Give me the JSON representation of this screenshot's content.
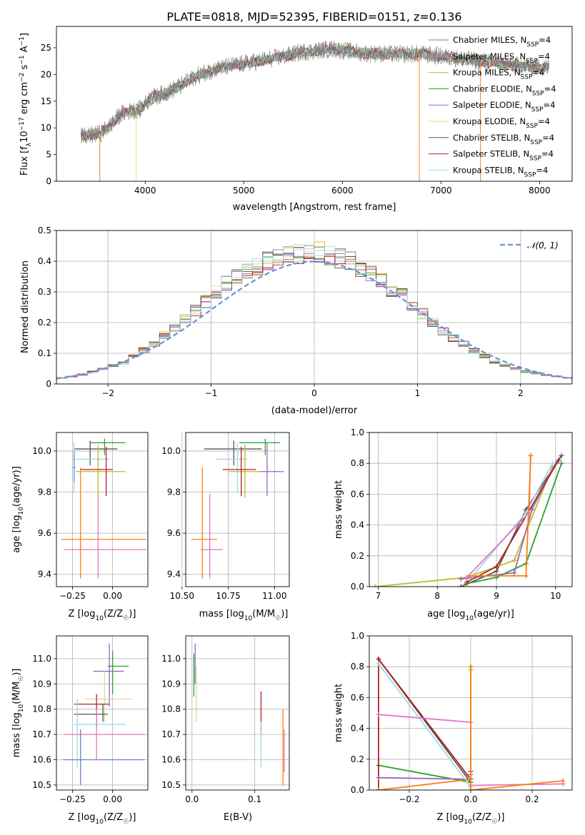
{
  "figure_title": "PLATE=0818, MJD=52395, FIBERID=0151, z=0.136",
  "palette": [
    "#808080",
    "#e377c2",
    "#bcbd22",
    "#2ca02c",
    "#9467bd",
    "#dbdb8d",
    "#555555",
    "#b22222",
    "#9edae5",
    "#ff7f0e",
    "#6a8fd8"
  ],
  "chart_data": [
    {
      "id": "spectrum",
      "type": "line",
      "title": "PLATE=0818, MJD=52395, FIBERID=0151, z=0.136",
      "xlabel": "wavelength [Angstrom, rest frame]",
      "ylabel": "Flux [f_λ 10⁻¹⁷ erg cm⁻² s⁻¹ A⁻¹]",
      "xlim": [
        3100,
        8330
      ],
      "ylim": [
        0,
        29
      ],
      "xticks": [
        4000,
        5000,
        6000,
        7000,
        8000
      ],
      "yticks": [
        0,
        5,
        10,
        15,
        20,
        25
      ],
      "grid": false,
      "legend_position": "top-right",
      "legend": [
        {
          "base": "Chabrier MILES, N",
          "sub": "SSP",
          "tail": "=4",
          "color": "#808080"
        },
        {
          "base": "Salpeter MILES, N",
          "sub": "SSP",
          "tail": "=4",
          "color": "#e377c2"
        },
        {
          "base": "Kroupa MILES, N",
          "sub": "SSP",
          "tail": "=4",
          "color": "#bcbd22"
        },
        {
          "base": "Chabrier ELODIE, N",
          "sub": "SSP",
          "tail": "=4",
          "color": "#2ca02c"
        },
        {
          "base": "Salpeter ELODIE, N",
          "sub": "SSP",
          "tail": "=4",
          "color": "#9467bd"
        },
        {
          "base": "Kroupa ELODIE, N",
          "sub": "SSP",
          "tail": "=4",
          "color": "#dbdb8d"
        },
        {
          "base": "Chabrier STELIB, N",
          "sub": "SSP",
          "tail": "=4",
          "color": "#555555"
        },
        {
          "base": "Salpeter STELIB, N",
          "sub": "SSP",
          "tail": "=4",
          "color": "#b22222"
        },
        {
          "base": "Kroupa STELIB, N",
          "sub": "SSP",
          "tail": "=4",
          "color": "#9edae5"
        }
      ],
      "continuum": [
        [
          3350,
          8.3
        ],
        [
          3450,
          8.6
        ],
        [
          3550,
          9.0
        ],
        [
          3650,
          10.5
        ],
        [
          3750,
          12.5
        ],
        [
          3850,
          13.2
        ],
        [
          3950,
          13.5
        ],
        [
          4050,
          15.5
        ],
        [
          4200,
          16.5
        ],
        [
          4350,
          17.8
        ],
        [
          4500,
          19.5
        ],
        [
          4700,
          21.0
        ],
        [
          5000,
          22.0
        ],
        [
          5300,
          23.0
        ],
        [
          5600,
          24.2
        ],
        [
          5900,
          24.8
        ],
        [
          6200,
          24.0
        ],
        [
          6500,
          23.8
        ],
        [
          6800,
          23.8
        ],
        [
          7100,
          23.2
        ],
        [
          7400,
          22.5
        ],
        [
          7600,
          22.0
        ],
        [
          7800,
          21.6
        ],
        [
          8000,
          21.4
        ],
        [
          8100,
          21.3
        ]
      ]
    },
    {
      "id": "residuals",
      "type": "step",
      "xlabel": "(data-model)/error",
      "ylabel": "Normed distribution",
      "xlim": [
        -2.5,
        2.5
      ],
      "ylim": [
        0,
        0.5
      ],
      "xticks": [
        -2,
        -1,
        0,
        1,
        2
      ],
      "xtick_labels": [
        "−2",
        "−1",
        "0",
        "1",
        "2"
      ],
      "yticks": [
        0.0,
        0.1,
        0.2,
        0.3,
        0.4,
        0.5
      ],
      "grid": true,
      "legend_position": "top-right",
      "legend": [
        {
          "label": "𝒩(0, 1)",
          "style": "dashed",
          "color": "#6a8fd8"
        }
      ],
      "bin_width": 0.1,
      "hist_mean": [
        0.02,
        0.025,
        0.03,
        0.04,
        0.05,
        0.06,
        0.07,
        0.09,
        0.11,
        0.13,
        0.16,
        0.18,
        0.21,
        0.24,
        0.27,
        0.3,
        0.33,
        0.35,
        0.37,
        0.38,
        0.4,
        0.41,
        0.42,
        0.42,
        0.43,
        0.43,
        0.42,
        0.41,
        0.4,
        0.38,
        0.36,
        0.34,
        0.31,
        0.29,
        0.26,
        0.23,
        0.2,
        0.17,
        0.15,
        0.13,
        0.11,
        0.09,
        0.07,
        0.06,
        0.05,
        0.04,
        0.035,
        0.03,
        0.025,
        0.02
      ]
    },
    {
      "id": "age-vs-Z",
      "type": "errorbar",
      "xlabel": "Z [log₁₀(Z/Z☉)]",
      "ylabel": "age  [log₁₀(age/yr)]",
      "xlim": [
        -0.35,
        0.22
      ],
      "ylim": [
        9.34,
        10.09
      ],
      "xticks": [
        -0.25,
        0.0
      ],
      "xtick_labels": [
        "−0.25",
        "0.00"
      ],
      "yticks": [
        9.4,
        9.6,
        9.8,
        10.0
      ],
      "yticks_labels": [
        "9.4",
        "9.6",
        "9.8",
        "10.0"
      ],
      "grid": true,
      "points": [
        {
          "x": -0.14,
          "y": 10.01,
          "xl": -0.24,
          "xh": 0.03,
          "yl": 9.93,
          "yh": 10.05,
          "color": "#555555"
        },
        {
          "x": -0.05,
          "y": 10.04,
          "xl": -0.14,
          "xh": 0.08,
          "yl": 9.98,
          "yh": 10.06,
          "color": "#2ca02c"
        },
        {
          "x": -0.24,
          "y": 9.96,
          "xl": -0.25,
          "xh": -0.02,
          "yl": 9.8,
          "yh": 10.04,
          "color": "#9edae5"
        },
        {
          "x": -0.09,
          "y": 9.9,
          "xl": -0.23,
          "xh": 0.08,
          "yl": 9.77,
          "yh": 10.03,
          "color": "#bcbd22"
        },
        {
          "x": -0.04,
          "y": 9.91,
          "xl": -0.2,
          "xh": 0.0,
          "yl": 9.78,
          "yh": 10.02,
          "color": "#b22222"
        },
        {
          "x": -0.24,
          "y": 9.92,
          "xl": -0.25,
          "xh": -0.23,
          "yl": 9.85,
          "yh": 10.0,
          "color": "#6a8fd8"
        },
        {
          "x": -0.2,
          "y": 9.57,
          "xl": -0.32,
          "xh": 0.21,
          "yl": 9.38,
          "yh": 9.92,
          "color": "#ff7f0e"
        },
        {
          "x": -0.09,
          "y": 9.52,
          "xl": -0.3,
          "xh": 0.21,
          "yl": 9.38,
          "yh": 9.79,
          "color": "#e377c2"
        }
      ]
    },
    {
      "id": "age-vs-mass",
      "type": "errorbar",
      "xlabel": "mass [log₁₀(M/M☉)]",
      "ylabel": "",
      "xlim": [
        10.52,
        11.08
      ],
      "ylim": [
        9.34,
        10.09
      ],
      "xticks": [
        10.5,
        10.75,
        11.0
      ],
      "xtick_labels": [
        "10.50",
        "10.75",
        "11.00"
      ],
      "yticks": [
        9.4,
        9.6,
        9.8,
        10.0
      ],
      "yticks_labels": [
        "9.4",
        "9.6",
        "9.8",
        "10.0"
      ],
      "grid": true,
      "points": [
        {
          "x": 10.78,
          "y": 10.01,
          "xl": 10.62,
          "xh": 10.93,
          "yl": 9.93,
          "yh": 10.05,
          "color": "#555555"
        },
        {
          "x": 10.95,
          "y": 10.04,
          "xl": 10.81,
          "xh": 11.03,
          "yl": 9.98,
          "yh": 10.06,
          "color": "#2ca02c"
        },
        {
          "x": 10.8,
          "y": 9.96,
          "xl": 10.68,
          "xh": 10.85,
          "yl": 9.8,
          "yh": 10.04,
          "color": "#9edae5"
        },
        {
          "x": 10.84,
          "y": 9.9,
          "xl": 10.75,
          "xh": 10.93,
          "yl": 9.77,
          "yh": 10.03,
          "color": "#bcbd22"
        },
        {
          "x": 10.82,
          "y": 9.91,
          "xl": 10.72,
          "xh": 10.9,
          "yl": 9.78,
          "yh": 10.02,
          "color": "#b22222"
        },
        {
          "x": 10.96,
          "y": 9.9,
          "xl": 10.92,
          "xh": 11.05,
          "yl": 9.78,
          "yh": 10.04,
          "color": "#9467bd"
        },
        {
          "x": 10.61,
          "y": 9.57,
          "xl": 10.55,
          "xh": 10.69,
          "yl": 9.38,
          "yh": 9.92,
          "color": "#ff7f0e"
        },
        {
          "x": 10.65,
          "y": 9.52,
          "xl": 10.6,
          "xh": 10.72,
          "yl": 9.38,
          "yh": 9.79,
          "color": "#e377c2"
        }
      ]
    },
    {
      "id": "mass-weight-vs-age",
      "type": "line",
      "xlabel": "age  [log₁₀(age/yr)]",
      "ylabel": "mass weight",
      "xlim": [
        6.85,
        10.28
      ],
      "ylim": [
        0,
        1.0
      ],
      "xticks": [
        7,
        8,
        9,
        10
      ],
      "yticks": [
        0.0,
        0.2,
        0.4,
        0.6,
        0.8,
        1.0
      ],
      "yticks_labels": [
        "0.0",
        "0.2",
        "0.4",
        "0.6",
        "0.8",
        "1.0"
      ],
      "grid": true,
      "series": [
        {
          "color": "#555555",
          "points": [
            [
              8.4,
              0.0
            ],
            [
              9.0,
              0.1
            ],
            [
              9.5,
              0.5
            ],
            [
              10.1,
              0.85
            ]
          ]
        },
        {
          "color": "#2ca02c",
          "points": [
            [
              8.5,
              0.02
            ],
            [
              9.0,
              0.06
            ],
            [
              9.5,
              0.15
            ],
            [
              10.1,
              0.8
            ]
          ]
        },
        {
          "color": "#bcbd22",
          "points": [
            [
              6.95,
              0.0
            ],
            [
              8.5,
              0.06
            ],
            [
              9.3,
              0.17
            ],
            [
              9.95,
              0.78
            ]
          ]
        },
        {
          "color": "#9467bd",
          "points": [
            [
              8.4,
              0.05
            ],
            [
              9.3,
              0.09
            ],
            [
              9.6,
              0.5
            ],
            [
              10.0,
              0.8
            ]
          ]
        },
        {
          "color": "#b22222",
          "points": [
            [
              8.5,
              0.03
            ],
            [
              9.0,
              0.13
            ],
            [
              10.05,
              0.82
            ]
          ]
        },
        {
          "color": "#9edae5",
          "points": [
            [
              8.6,
              0.07
            ],
            [
              9.5,
              0.48
            ],
            [
              9.95,
              0.8
            ]
          ]
        },
        {
          "color": "#e377c2",
          "points": [
            [
              8.5,
              0.06
            ],
            [
              9.55,
              0.48
            ],
            [
              9.58,
              0.85
            ]
          ]
        },
        {
          "color": "#ff7f0e",
          "points": [
            [
              8.55,
              0.07
            ],
            [
              9.5,
              0.07
            ],
            [
              9.58,
              0.85
            ]
          ]
        }
      ]
    },
    {
      "id": "mass-vs-Z",
      "type": "errorbar",
      "xlabel": "Z [log₁₀(Z/Z☉)]",
      "ylabel": "mass [log₁₀(M/M☉)]",
      "xlim": [
        -0.35,
        0.22
      ],
      "ylim": [
        10.48,
        11.09
      ],
      "xticks": [
        -0.25,
        0.0
      ],
      "xtick_labels": [
        "−0.25",
        "0.00"
      ],
      "yticks": [
        10.5,
        10.6,
        10.7,
        10.8,
        10.9,
        11.0
      ],
      "yticks_labels": [
        "10.5",
        "10.6",
        "10.7",
        "10.8",
        "10.9",
        "11.0"
      ],
      "grid": true,
      "points": [
        {
          "x": 0.0,
          "y": 10.97,
          "xl": -0.03,
          "xh": 0.1,
          "yl": 10.86,
          "yh": 11.03,
          "color": "#2ca02c"
        },
        {
          "x": -0.02,
          "y": 10.95,
          "xl": -0.12,
          "xh": 0.07,
          "yl": 10.81,
          "yh": 11.06,
          "color": "#9467bd"
        },
        {
          "x": -0.05,
          "y": 10.84,
          "xl": -0.17,
          "xh": 0.12,
          "yl": 10.75,
          "yh": 10.95,
          "color": "#dbdb8d"
        },
        {
          "x": -0.1,
          "y": 10.82,
          "xl": -0.24,
          "xh": -0.02,
          "yl": 10.73,
          "yh": 10.86,
          "color": "#b22222"
        },
        {
          "x": -0.06,
          "y": 10.78,
          "xl": -0.24,
          "xh": -0.03,
          "yl": 10.75,
          "yh": 10.82,
          "color": "#555555"
        },
        {
          "x": -0.22,
          "y": 10.74,
          "xl": -0.24,
          "xh": 0.08,
          "yl": 10.57,
          "yh": 10.84,
          "color": "#9edae5"
        },
        {
          "x": -0.1,
          "y": 10.7,
          "xl": -0.3,
          "xh": 0.2,
          "yl": 10.6,
          "yh": 10.8,
          "color": "#e377c2"
        },
        {
          "x": -0.2,
          "y": 10.6,
          "xl": -0.31,
          "xh": 0.2,
          "yl": 10.5,
          "yh": 10.72,
          "color": "#ff7f0e"
        },
        {
          "x": -0.2,
          "y": 10.6,
          "xl": -0.31,
          "xh": 0.2,
          "yl": 10.5,
          "yh": 10.72,
          "color": "#6a8fd8"
        }
      ]
    },
    {
      "id": "mass-vs-EBV",
      "type": "errorbar",
      "xlabel": "E(B-V)",
      "ylabel": "",
      "xlim": [
        -0.01,
        0.155
      ],
      "ylim": [
        10.48,
        11.09
      ],
      "xticks": [
        0.0,
        0.1
      ],
      "xtick_labels": [
        "0.0",
        "0.1"
      ],
      "yticks": [
        10.5,
        10.6,
        10.7,
        10.8,
        10.9,
        11.0
      ],
      "yticks_labels": [
        "10.5",
        "10.6",
        "10.7",
        "10.8",
        "10.9",
        "11.0"
      ],
      "grid": true,
      "points": [
        {
          "x": 0.005,
          "y": 11.0,
          "yl": 10.9,
          "yh": 11.06,
          "color": "#9467bd"
        },
        {
          "x": 0.007,
          "y": 10.9,
          "yl": 10.75,
          "yh": 10.97,
          "color": "#dbdb8d"
        },
        {
          "x": 0.003,
          "y": 10.95,
          "yl": 10.85,
          "yh": 11.02,
          "color": "#2ca02c"
        },
        {
          "x": 0.11,
          "y": 10.8,
          "yl": 10.7,
          "yh": 10.87,
          "color": "#b22222"
        },
        {
          "x": 0.11,
          "y": 10.68,
          "yl": 10.57,
          "yh": 10.75,
          "color": "#9edae5"
        },
        {
          "x": 0.145,
          "y": 10.65,
          "yl": 10.5,
          "yh": 10.8,
          "color": "#ff7f0e"
        },
        {
          "x": 0.147,
          "y": 10.62,
          "yl": 10.55,
          "yh": 10.72,
          "color": "#e377c2"
        }
      ]
    },
    {
      "id": "mass-weight-vs-Z",
      "type": "line",
      "xlabel": "Z [log₁₀(Z/Z☉)]",
      "ylabel": "mass weight",
      "xlim": [
        -0.33,
        0.33
      ],
      "ylim": [
        0,
        1.0
      ],
      "xticks": [
        -0.2,
        0.0,
        0.2
      ],
      "xtick_labels": [
        "−0.2",
        "0.0",
        "0.2"
      ],
      "yticks": [
        0.0,
        0.2,
        0.4,
        0.6,
        0.8,
        1.0
      ],
      "yticks_labels": [
        "0.0",
        "0.2",
        "0.4",
        "0.6",
        "0.8",
        "1.0"
      ],
      "grid": true,
      "series": [
        {
          "color": "#555555",
          "points": [
            [
              -0.3,
              0.85
            ],
            [
              0.0,
              0.05
            ],
            [
              0.0,
              0.12
            ]
          ]
        },
        {
          "color": "#2ca02c",
          "points": [
            [
              -0.3,
              0.16
            ],
            [
              0.0,
              0.05
            ],
            [
              0.0,
              0.8
            ]
          ]
        },
        {
          "color": "#bcbd22",
          "points": [
            [
              0.0,
              0.0
            ],
            [
              0.0,
              0.78
            ]
          ]
        },
        {
          "color": "#b22222",
          "points": [
            [
              -0.3,
              0.0
            ],
            [
              -0.3,
              0.85
            ],
            [
              0.0,
              0.07
            ]
          ]
        },
        {
          "color": "#9467bd",
          "points": [
            [
              -0.3,
              0.08
            ],
            [
              0.0,
              0.07
            ],
            [
              0.0,
              0.1
            ]
          ]
        },
        {
          "color": "#9edae5",
          "points": [
            [
              -0.3,
              0.82
            ],
            [
              0.0,
              0.02
            ],
            [
              0.0,
              0.08
            ]
          ]
        },
        {
          "color": "#e377c2",
          "points": [
            [
              -0.3,
              0.49
            ],
            [
              0.0,
              0.44
            ],
            [
              0.0,
              0.03
            ],
            [
              0.3,
              0.04
            ]
          ]
        },
        {
          "color": "#ff7f0e",
          "points": [
            [
              -0.3,
              0.0
            ],
            [
              0.0,
              0.07
            ],
            [
              0.0,
              0.8
            ],
            [
              0.0,
              0.0
            ],
            [
              0.3,
              0.06
            ]
          ]
        }
      ]
    }
  ]
}
